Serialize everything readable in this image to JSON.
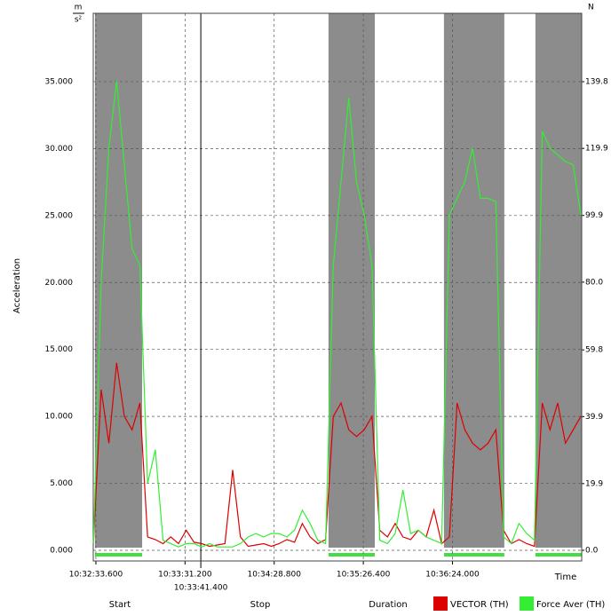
{
  "chart_data": {
    "type": "line",
    "ylabel": "Acceleration",
    "y_unit": {
      "numerator": "m",
      "denominator": "s²"
    },
    "y2_unit": "N",
    "xlabel": "Time",
    "footer_labels": [
      "Start",
      "Stop",
      "Duration"
    ],
    "xlim": [
      37951.9,
      38267.5
    ],
    "xticks": [
      {
        "value": 37953.6,
        "label": "10:32:33.600"
      },
      {
        "value": 38011.2,
        "label": "10:33:31.200"
      },
      {
        "value": 38068.8,
        "label": "10:34:28.800"
      },
      {
        "value": 38126.4,
        "label": "10:35:26.400"
      },
      {
        "value": 38184,
        "label": "10:36:24.000"
      }
    ],
    "cursor": {
      "value": 38021.4,
      "label": "10:33:41.400"
    },
    "ylim": [
      0,
      40.1
    ],
    "yticks": [
      {
        "value": 0,
        "label": "0.000"
      },
      {
        "value": 5,
        "label": "5.000"
      },
      {
        "value": 10,
        "label": "10.000"
      },
      {
        "value": 15,
        "label": "15.000"
      },
      {
        "value": 20,
        "label": "20.000"
      },
      {
        "value": 25,
        "label": "25.000"
      },
      {
        "value": 30,
        "label": "30.000"
      },
      {
        "value": 35,
        "label": "35.000"
      }
    ],
    "y2lim": [
      0,
      160.2
    ],
    "y2ticks": [
      {
        "value": 0,
        "label": "0.0"
      },
      19.9,
      39.9,
      59.8,
      {
        "value": 80,
        "label": "80.0"
      },
      99.9,
      119.9,
      139.8
    ],
    "grid": true,
    "intervals": [
      [
        37953.0,
        37983.5
      ],
      [
        38103.9,
        38133.8
      ],
      [
        38178.5,
        38217.5
      ],
      [
        38237.6,
        38267.5
      ]
    ],
    "interval_color": "#8c8c8c",
    "interval_bar_color": "#44dd44",
    "x": [
      37952,
      37957,
      37962,
      37967,
      37972,
      37977,
      37982,
      37987,
      37992,
      37997,
      38002,
      38007,
      38012,
      38017,
      38022,
      38027,
      38032,
      38037,
      38042,
      38047,
      38052,
      38057,
      38062,
      38067,
      38072,
      38077,
      38082,
      38087,
      38092,
      38097,
      38102,
      38107,
      38112,
      38117,
      38122,
      38127,
      38132,
      38137,
      38142,
      38147,
      38152,
      38157,
      38162,
      38167,
      38172,
      38177,
      38182,
      38187,
      38192,
      38197,
      38202,
      38207,
      38212,
      38217,
      38222,
      38227,
      38232,
      38237,
      38242,
      38247,
      38252,
      38257,
      38262,
      38267
    ],
    "series": [
      {
        "name": "VECTOR (TH)",
        "color": "#dd0000",
        "values": [
          0.5,
          12,
          8,
          14,
          10,
          9,
          11,
          1,
          0.8,
          0.5,
          1,
          0.5,
          1.5,
          0.6,
          0.5,
          0.3,
          0.4,
          0.5,
          6,
          1,
          0.3,
          0.4,
          0.5,
          0.3,
          0.5,
          0.8,
          0.6,
          2,
          1,
          0.5,
          0.8,
          10,
          11,
          9,
          8.5,
          9,
          10,
          1.5,
          1,
          2,
          1,
          0.8,
          1.5,
          1,
          3,
          0.5,
          1,
          11,
          9,
          8,
          7.5,
          8,
          9,
          1.5,
          0.5,
          0.8,
          0.5,
          0.3,
          11,
          9,
          11,
          8,
          9,
          10
        ]
      },
      {
        "name": "Force Aver (TH)",
        "color": "#33ee33",
        "axis": "y2",
        "values": [
          2,
          80,
          120,
          140,
          115,
          90,
          85,
          20,
          30,
          3,
          2,
          1,
          2,
          2,
          1,
          2,
          1,
          1,
          1,
          2,
          4,
          5,
          4,
          5,
          5,
          4,
          6,
          12,
          8,
          3,
          2,
          85,
          110,
          135,
          110,
          100,
          85,
          3,
          2,
          5,
          18,
          5,
          6,
          4,
          3,
          2,
          100,
          105,
          110,
          120,
          105,
          105,
          104,
          4,
          2,
          8,
          5,
          3,
          125,
          120,
          118,
          116,
          115,
          100
        ]
      }
    ]
  }
}
